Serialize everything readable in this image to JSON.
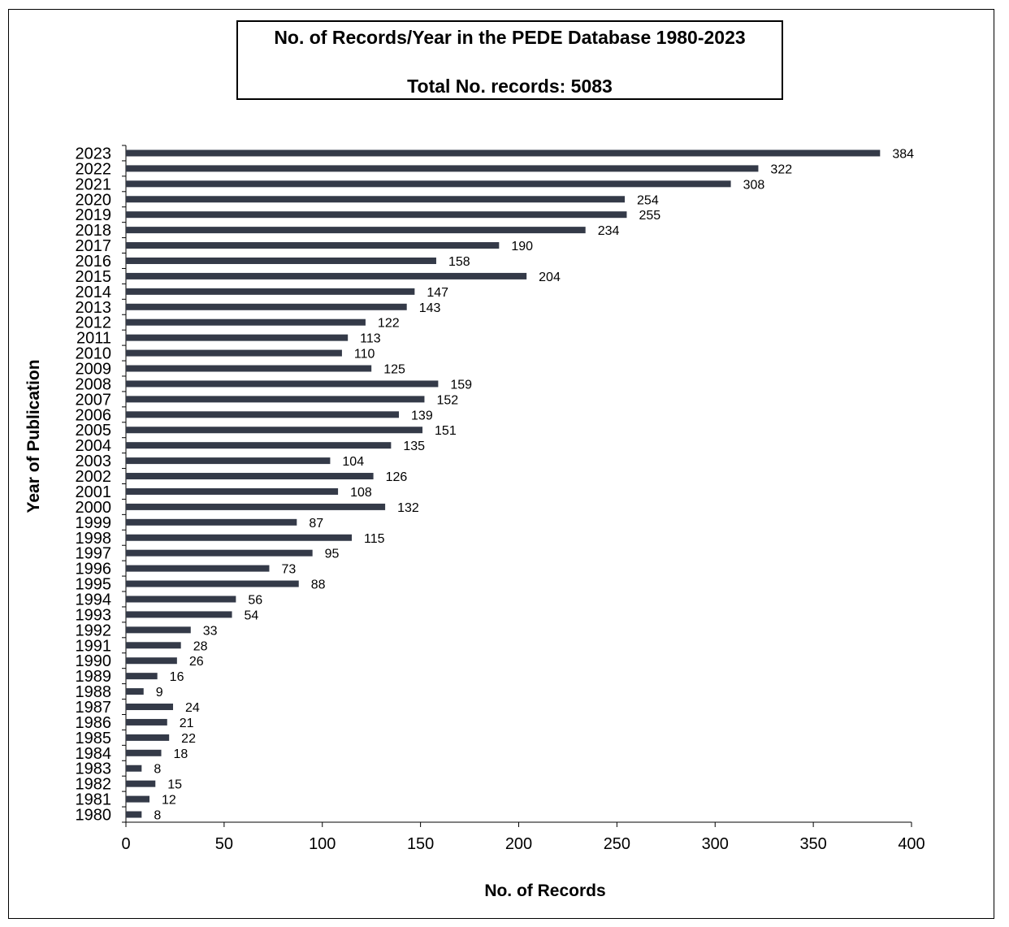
{
  "chart_data": {
    "type": "bar",
    "orientation": "horizontal",
    "title": "No. of Records/Year in the PEDE Database 1980-2023",
    "subtitle": "Total No. records: 5083",
    "xlabel": "No. of Records",
    "ylabel": "Year of Publication",
    "xlim": [
      0,
      400
    ],
    "xticks": [
      0,
      50,
      100,
      150,
      200,
      250,
      300,
      350,
      400
    ],
    "grid": false,
    "legend": "none",
    "bar_color": "#343a48",
    "categories": [
      "2023",
      "2022",
      "2021",
      "2020",
      "2019",
      "2018",
      "2017",
      "2016",
      "2015",
      "2014",
      "2013",
      "2012",
      "2011",
      "2010",
      "2009",
      "2008",
      "2007",
      "2006",
      "2005",
      "2004",
      "2003",
      "2002",
      "2001",
      "2000",
      "1999",
      "1998",
      "1997",
      "1996",
      "1995",
      "1994",
      "1993",
      "1992",
      "1991",
      "1990",
      "1989",
      "1988",
      "1987",
      "1986",
      "1985",
      "1984",
      "1983",
      "1982",
      "1981",
      "1980"
    ],
    "values": [
      384,
      322,
      308,
      254,
      255,
      234,
      190,
      158,
      204,
      147,
      143,
      122,
      113,
      110,
      125,
      159,
      152,
      139,
      151,
      135,
      104,
      126,
      108,
      132,
      87,
      115,
      95,
      73,
      88,
      56,
      54,
      33,
      28,
      26,
      16,
      9,
      24,
      21,
      22,
      18,
      8,
      15,
      12,
      8
    ]
  }
}
